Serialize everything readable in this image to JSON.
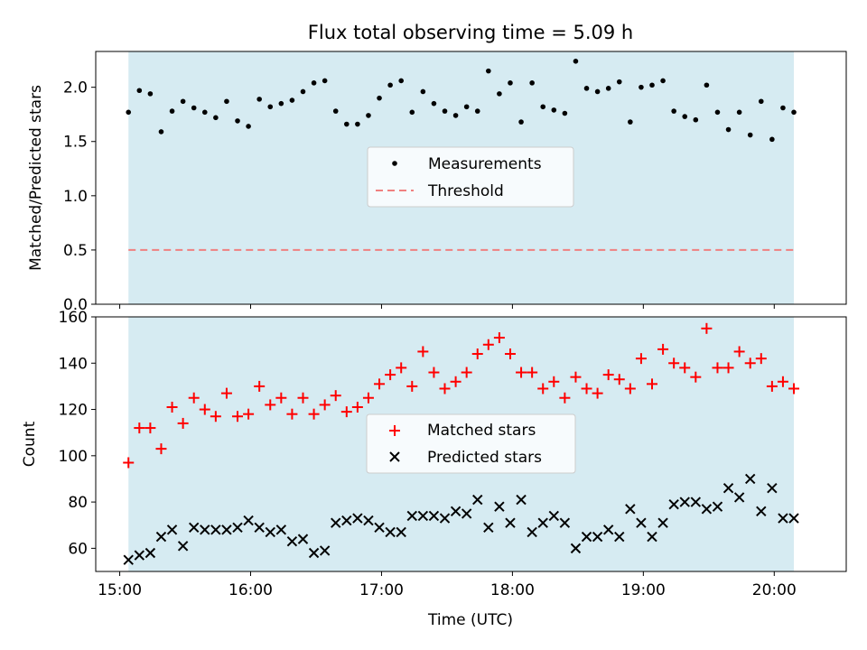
{
  "chart_data": [
    {
      "type": "scatter",
      "title": "Flux total observing time = 5.09 h",
      "xlabel": "",
      "ylabel": "Matched/Predicted stars",
      "ylim": [
        0,
        2.33
      ],
      "yticks": [
        "0.0",
        "0.5",
        "1.0",
        "1.5",
        "2.0"
      ],
      "yticks_values": [
        0,
        0.5,
        1.0,
        1.5,
        2.0
      ],
      "legend_placement": "center",
      "shaded_interval": {
        "start": "15:04",
        "end": "20:09",
        "color": "#add8e6"
      },
      "threshold": {
        "name": "Threshold",
        "value": 0.5,
        "color": "#f08080"
      },
      "series": [
        {
          "name": "Measurements",
          "color": "#000000",
          "points": [
            [
              "15:04",
              1.77
            ],
            [
              "15:09",
              1.97
            ],
            [
              "15:14",
              1.94
            ],
            [
              "15:19",
              1.59
            ],
            [
              "15:24",
              1.78
            ],
            [
              "15:29",
              1.87
            ],
            [
              "15:34",
              1.81
            ],
            [
              "15:39",
              1.77
            ],
            [
              "15:44",
              1.72
            ],
            [
              "15:49",
              1.87
            ],
            [
              "15:54",
              1.69
            ],
            [
              "15:59",
              1.64
            ],
            [
              "16:04",
              1.89
            ],
            [
              "16:09",
              1.82
            ],
            [
              "16:14",
              1.85
            ],
            [
              "16:19",
              1.88
            ],
            [
              "16:24",
              1.96
            ],
            [
              "16:29",
              2.04
            ],
            [
              "16:34",
              2.06
            ],
            [
              "16:39",
              1.78
            ],
            [
              "16:44",
              1.66
            ],
            [
              "16:49",
              1.66
            ],
            [
              "16:54",
              1.74
            ],
            [
              "16:59",
              1.9
            ],
            [
              "17:04",
              2.02
            ],
            [
              "17:09",
              2.06
            ],
            [
              "17:14",
              1.77
            ],
            [
              "17:19",
              1.96
            ],
            [
              "17:24",
              1.85
            ],
            [
              "17:29",
              1.78
            ],
            [
              "17:34",
              1.74
            ],
            [
              "17:39",
              1.82
            ],
            [
              "17:44",
              1.78
            ],
            [
              "17:49",
              2.15
            ],
            [
              "17:54",
              1.94
            ],
            [
              "17:59",
              2.04
            ],
            [
              "18:04",
              1.68
            ],
            [
              "18:09",
              2.04
            ],
            [
              "18:14",
              1.82
            ],
            [
              "18:19",
              1.79
            ],
            [
              "18:24",
              1.76
            ],
            [
              "18:29",
              2.24
            ],
            [
              "18:34",
              1.99
            ],
            [
              "18:39",
              1.96
            ],
            [
              "18:44",
              1.99
            ],
            [
              "18:49",
              2.05
            ],
            [
              "18:54",
              1.68
            ],
            [
              "18:59",
              2.0
            ],
            [
              "19:04",
              2.02
            ],
            [
              "19:09",
              2.06
            ],
            [
              "19:14",
              1.78
            ],
            [
              "19:19",
              1.73
            ],
            [
              "19:24",
              1.7
            ],
            [
              "19:29",
              2.02
            ],
            [
              "19:34",
              1.77
            ],
            [
              "19:39",
              1.61
            ],
            [
              "19:44",
              1.77
            ],
            [
              "19:49",
              1.56
            ],
            [
              "19:54",
              1.87
            ],
            [
              "19:59",
              1.52
            ],
            [
              "20:04",
              1.81
            ],
            [
              "20:09",
              1.77
            ]
          ]
        }
      ]
    },
    {
      "type": "scatter",
      "title": "",
      "xlabel": "Time (UTC)",
      "ylabel": "Count",
      "ylim": [
        50,
        160
      ],
      "yticks": [
        "60",
        "80",
        "100",
        "120",
        "140",
        "160"
      ],
      "yticks_values": [
        60,
        80,
        100,
        120,
        140,
        160
      ],
      "xlim": [
        "14:49",
        "20:33"
      ],
      "xticks": [
        "15:00",
        "16:00",
        "17:00",
        "18:00",
        "19:00",
        "20:00"
      ],
      "legend_placement": "center",
      "shaded_interval": {
        "start": "15:04",
        "end": "20:09",
        "color": "#add8e6"
      },
      "series": [
        {
          "name": "Matched stars",
          "color": "#ff0000",
          "marker": "plus",
          "points": [
            [
              "15:04",
              97
            ],
            [
              "15:09",
              112
            ],
            [
              "15:14",
              112
            ],
            [
              "15:19",
              103
            ],
            [
              "15:24",
              121
            ],
            [
              "15:29",
              114
            ],
            [
              "15:34",
              125
            ],
            [
              "15:39",
              120
            ],
            [
              "15:44",
              117
            ],
            [
              "15:49",
              127
            ],
            [
              "15:54",
              117
            ],
            [
              "15:59",
              118
            ],
            [
              "16:04",
              130
            ],
            [
              "16:09",
              122
            ],
            [
              "16:14",
              125
            ],
            [
              "16:19",
              118
            ],
            [
              "16:24",
              125
            ],
            [
              "16:29",
              118
            ],
            [
              "16:34",
              122
            ],
            [
              "16:39",
              126
            ],
            [
              "16:44",
              119
            ],
            [
              "16:49",
              121
            ],
            [
              "16:54",
              125
            ],
            [
              "16:59",
              131
            ],
            [
              "17:04",
              135
            ],
            [
              "17:09",
              138
            ],
            [
              "17:14",
              130
            ],
            [
              "17:19",
              145
            ],
            [
              "17:24",
              136
            ],
            [
              "17:29",
              129
            ],
            [
              "17:34",
              132
            ],
            [
              "17:39",
              136
            ],
            [
              "17:44",
              144
            ],
            [
              "17:49",
              148
            ],
            [
              "17:54",
              151
            ],
            [
              "17:59",
              144
            ],
            [
              "18:04",
              136
            ],
            [
              "18:09",
              136
            ],
            [
              "18:14",
              129
            ],
            [
              "18:19",
              132
            ],
            [
              "18:24",
              125
            ],
            [
              "18:29",
              134
            ],
            [
              "18:34",
              129
            ],
            [
              "18:39",
              127
            ],
            [
              "18:44",
              135
            ],
            [
              "18:49",
              133
            ],
            [
              "18:54",
              129
            ],
            [
              "18:59",
              142
            ],
            [
              "19:04",
              131
            ],
            [
              "19:09",
              146
            ],
            [
              "19:14",
              140
            ],
            [
              "19:19",
              138
            ],
            [
              "19:24",
              134
            ],
            [
              "19:29",
              155
            ],
            [
              "19:34",
              138
            ],
            [
              "19:39",
              138
            ],
            [
              "19:44",
              145
            ],
            [
              "19:49",
              140
            ],
            [
              "19:54",
              142
            ],
            [
              "19:59",
              130
            ],
            [
              "20:04",
              132
            ],
            [
              "20:09",
              129
            ]
          ]
        },
        {
          "name": "Predicted stars",
          "color": "#000000",
          "marker": "x",
          "points": [
            [
              "15:04",
              55
            ],
            [
              "15:09",
              57
            ],
            [
              "15:14",
              58
            ],
            [
              "15:19",
              65
            ],
            [
              "15:24",
              68
            ],
            [
              "15:29",
              61
            ],
            [
              "15:34",
              69
            ],
            [
              "15:39",
              68
            ],
            [
              "15:44",
              68
            ],
            [
              "15:49",
              68
            ],
            [
              "15:54",
              69
            ],
            [
              "15:59",
              72
            ],
            [
              "16:04",
              69
            ],
            [
              "16:09",
              67
            ],
            [
              "16:14",
              68
            ],
            [
              "16:19",
              63
            ],
            [
              "16:24",
              64
            ],
            [
              "16:29",
              58
            ],
            [
              "16:34",
              59
            ],
            [
              "16:39",
              71
            ],
            [
              "16:44",
              72
            ],
            [
              "16:49",
              73
            ],
            [
              "16:54",
              72
            ],
            [
              "16:59",
              69
            ],
            [
              "17:04",
              67
            ],
            [
              "17:09",
              67
            ],
            [
              "17:14",
              74
            ],
            [
              "17:19",
              74
            ],
            [
              "17:24",
              74
            ],
            [
              "17:29",
              73
            ],
            [
              "17:34",
              76
            ],
            [
              "17:39",
              75
            ],
            [
              "17:44",
              81
            ],
            [
              "17:49",
              69
            ],
            [
              "17:54",
              78
            ],
            [
              "17:59",
              71
            ],
            [
              "18:04",
              81
            ],
            [
              "18:09",
              67
            ],
            [
              "18:14",
              71
            ],
            [
              "18:19",
              74
            ],
            [
              "18:24",
              71
            ],
            [
              "18:29",
              60
            ],
            [
              "18:34",
              65
            ],
            [
              "18:39",
              65
            ],
            [
              "18:44",
              68
            ],
            [
              "18:49",
              65
            ],
            [
              "18:54",
              77
            ],
            [
              "18:59",
              71
            ],
            [
              "19:04",
              65
            ],
            [
              "19:09",
              71
            ],
            [
              "19:14",
              79
            ],
            [
              "19:19",
              80
            ],
            [
              "19:24",
              80
            ],
            [
              "19:29",
              77
            ],
            [
              "19:34",
              78
            ],
            [
              "19:39",
              86
            ],
            [
              "19:44",
              82
            ],
            [
              "19:49",
              90
            ],
            [
              "19:54",
              76
            ],
            [
              "19:59",
              86
            ],
            [
              "20:04",
              73
            ],
            [
              "20:09",
              73
            ]
          ]
        }
      ]
    }
  ]
}
